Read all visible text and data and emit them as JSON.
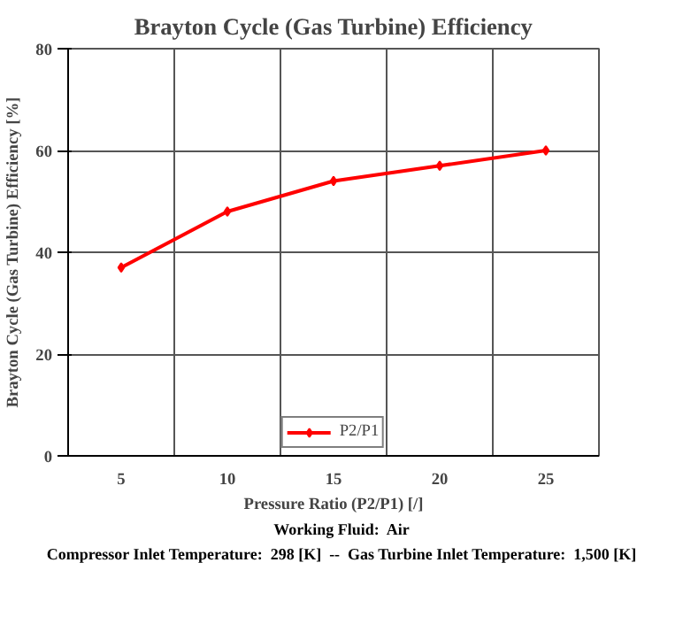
{
  "chart_data": {
    "type": "line",
    "title": "Brayton Cycle (Gas Turbine) Efficiency",
    "xlabel": "Pressure Ratio (P2/P1) [/]",
    "ylabel": "Brayton Cycle (Gas Turbine) Efficiency [%]",
    "categories": [
      "5",
      "10",
      "15",
      "20",
      "25"
    ],
    "series": [
      {
        "name": "P2/P1",
        "color": "#ff0000",
        "values": [
          37,
          48,
          54,
          57,
          60
        ]
      }
    ],
    "ylim": [
      0,
      80
    ],
    "yticks": [
      0,
      20,
      40,
      60,
      80
    ],
    "grid": true,
    "legend": "bottom",
    "marker": "diamond",
    "line_style": "solid",
    "annotations": [
      "Working Fluid:  Air",
      "Compressor Inlet Temperature:  298 [K]  --  Gas Turbine Inlet Temperature:  1,500 [K]"
    ]
  }
}
